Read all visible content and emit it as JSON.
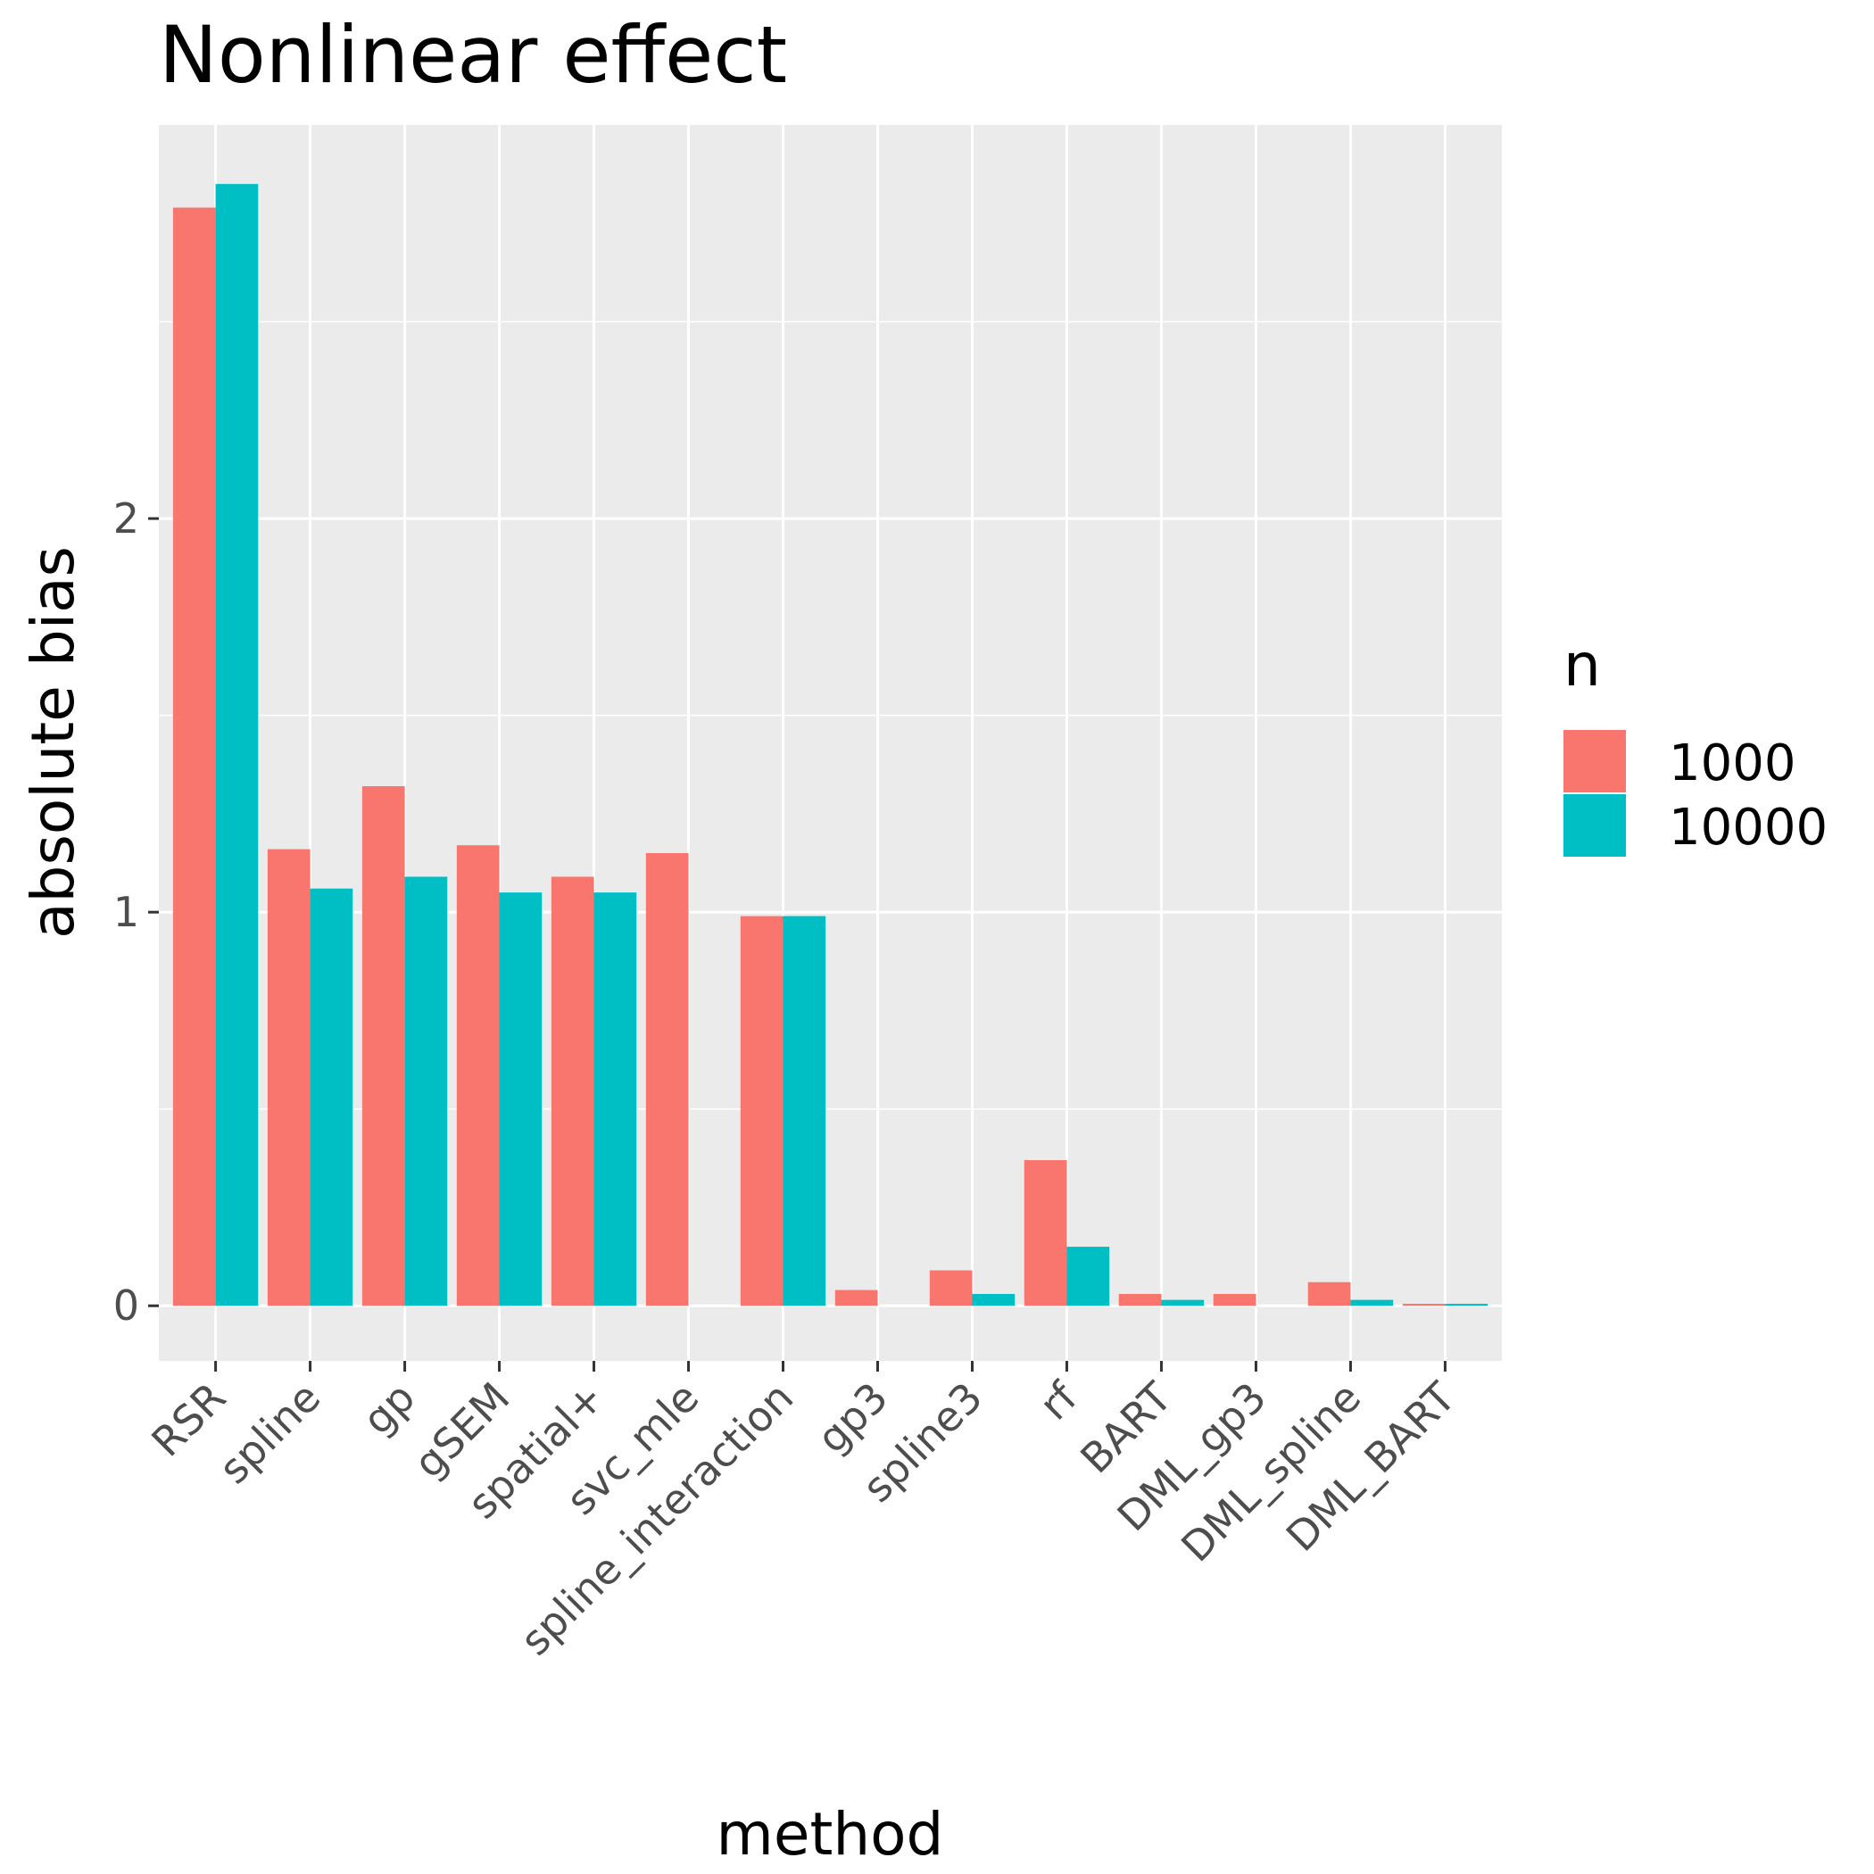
{
  "chart_data": {
    "type": "bar",
    "title": "Nonlinear effect",
    "xlabel": "method",
    "ylabel": "absolute bias",
    "categories": [
      "RSR",
      "spline",
      "gp",
      "gSEM",
      "spatial+",
      "svc_mle",
      "spline_interaction",
      "gp3",
      "spline3",
      "rf",
      "BART",
      "DML_gp3",
      "DML_spline",
      "DML_BART"
    ],
    "series": [
      {
        "name": "1000",
        "color": "#F8766D",
        "values": [
          2.79,
          1.16,
          1.32,
          1.17,
          1.09,
          1.15,
          0.99,
          0.04,
          0.09,
          0.37,
          0.03,
          0.03,
          0.06,
          0.005
        ]
      },
      {
        "name": "10000",
        "color": "#00BFC4",
        "values": [
          2.85,
          1.06,
          1.09,
          1.05,
          1.05,
          null,
          0.99,
          null,
          0.03,
          0.15,
          0.015,
          null,
          0.015,
          0.005
        ]
      }
    ],
    "yticks": [
      0,
      1,
      2
    ],
    "ylim": [
      -0.14,
      3.0
    ],
    "grid": true,
    "legend_title": "n",
    "legend_position": "right"
  }
}
